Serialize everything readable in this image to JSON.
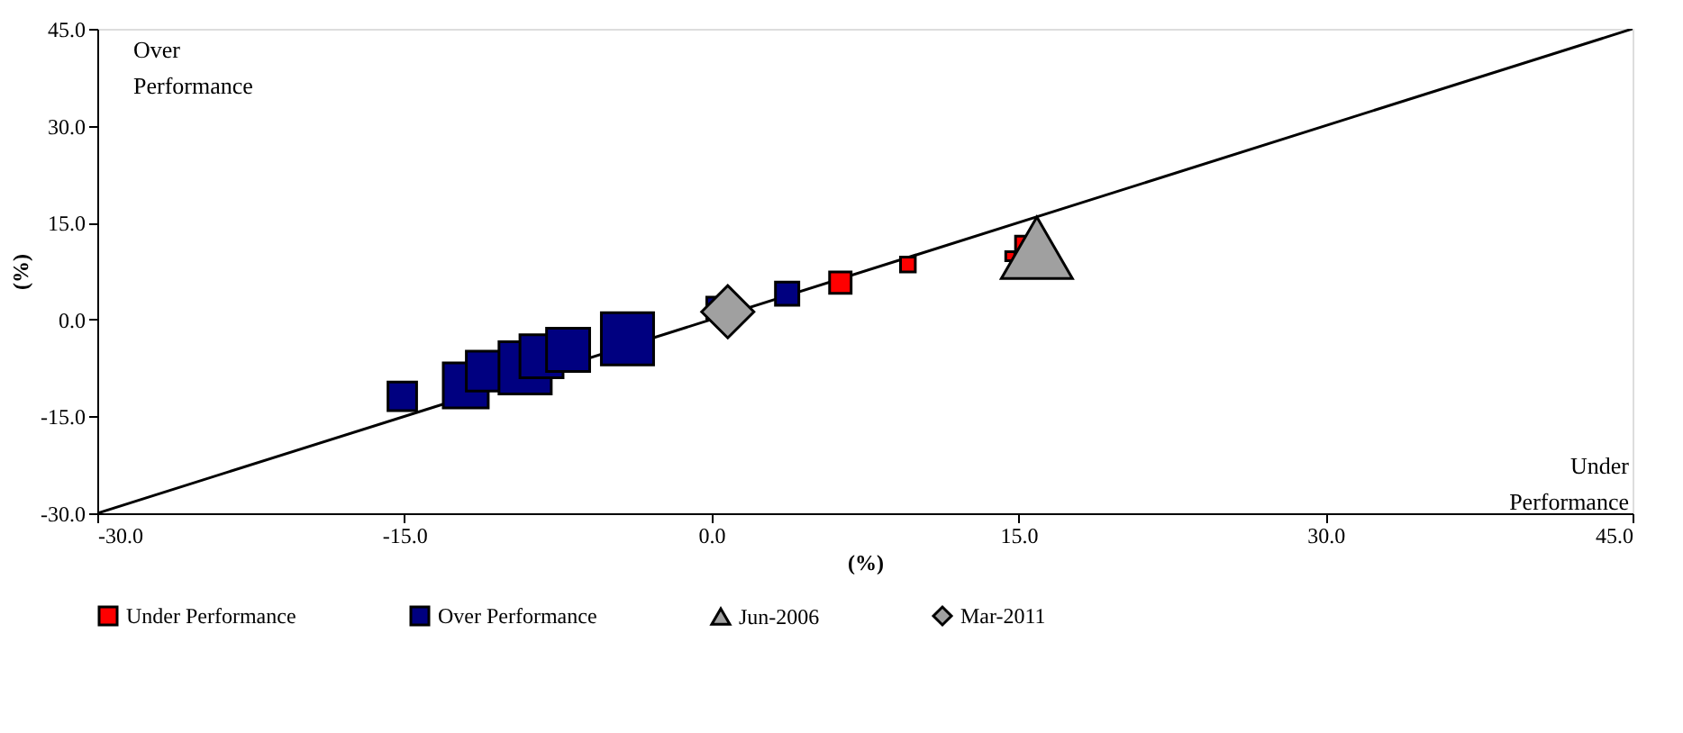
{
  "chart_data": {
    "type": "bubble",
    "xlabel": "(%)",
    "ylabel": "(%)",
    "xlim": [
      -30,
      45
    ],
    "ylim": [
      -30,
      45
    ],
    "xticks": [
      {
        "value": -30,
        "label": "-30.0"
      },
      {
        "value": -15,
        "label": "-15.0"
      },
      {
        "value": 0,
        "label": "0.0"
      },
      {
        "value": 15,
        "label": "15.0"
      },
      {
        "value": 30,
        "label": "30.0"
      },
      {
        "value": 45,
        "label": "45.0"
      }
    ],
    "yticks": [
      {
        "value": -30,
        "label": "-30.0"
      },
      {
        "value": -15,
        "label": "-15.0"
      },
      {
        "value": 0,
        "label": "0.0"
      },
      {
        "value": 15,
        "label": "15.0"
      },
      {
        "value": 30,
        "label": "30.0"
      },
      {
        "value": 45,
        "label": "45.0"
      }
    ],
    "grid": false,
    "legend": "bottom",
    "annotations": [
      "Over Performance",
      "Under Performance"
    ],
    "series": [
      {
        "type": "line",
        "color": "#000000",
        "x": [
          -30,
          45
        ],
        "values": [
          -30,
          45
        ],
        "marker": "none",
        "line_style": "solid"
      },
      {
        "name": "Under Performance",
        "color": "#ff0000",
        "marker": "square",
        "x": [
          6.3,
          9.6,
          14.6,
          15.3
        ],
        "values": [
          5.7,
          8.5,
          9.8,
          11.5
        ],
        "sizes": [
          0.17,
          0.08,
          0.03,
          0.12
        ]
      },
      {
        "name": "Over Performance",
        "color": "#000080",
        "marker": "square",
        "x": [
          -15.1,
          -12.0,
          -11.0,
          -9.1,
          -8.3,
          -7.0,
          -4.1,
          0.3,
          3.7
        ],
        "values": [
          -11.9,
          -10.2,
          -8.0,
          -7.5,
          -5.7,
          -4.7,
          -3.0,
          1.8,
          4.0
        ],
        "sizes": [
          0.3,
          0.74,
          0.58,
          1.0,
          0.68,
          0.68,
          1.0,
          0.17,
          0.2
        ]
      },
      {
        "name": "Jun-2006",
        "color": "#a0a0a0",
        "marker": "triangle",
        "x": [
          15.9
        ],
        "values": [
          11.1
        ],
        "sizes": [
          0.8
        ]
      },
      {
        "name": "Mar-2011",
        "color": "#a0a0a0",
        "marker": "diamond",
        "x": [
          0.8
        ],
        "values": [
          1.2
        ],
        "sizes": [
          0.5
        ]
      }
    ]
  }
}
